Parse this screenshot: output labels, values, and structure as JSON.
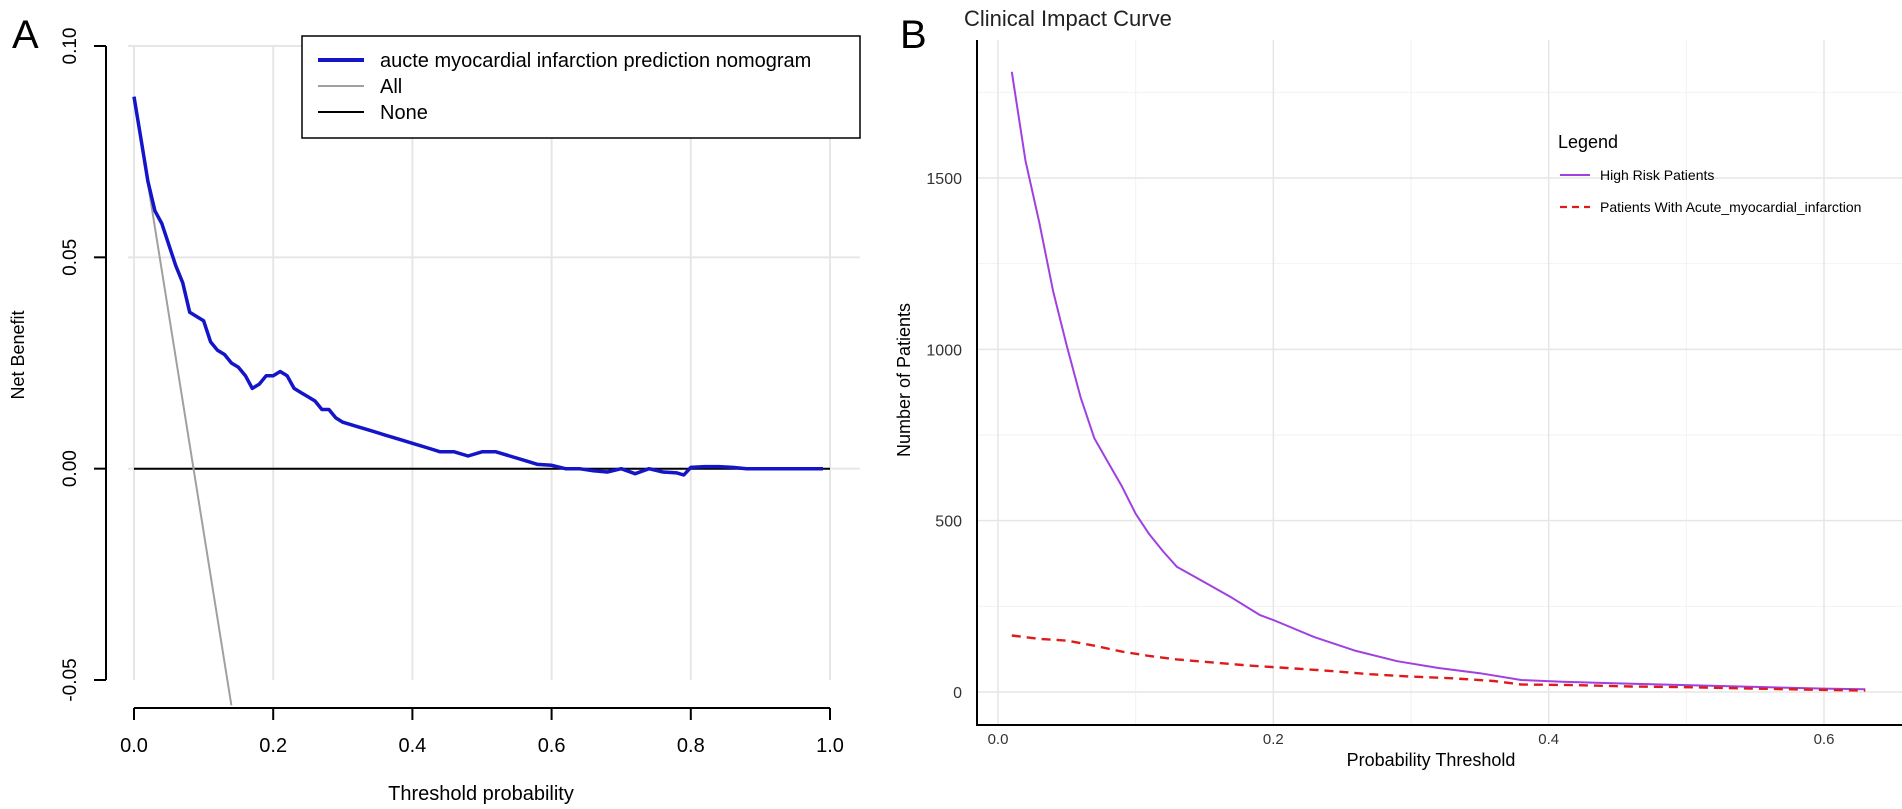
{
  "panels": {
    "a_label": "A",
    "b_label": "B"
  },
  "colors": {
    "nomogram": "#1414c8",
    "all": "#a0a0a0",
    "none": "#000000",
    "high_risk": "#a040e0",
    "with_outcome": "#e01a1a"
  },
  "chart_data": [
    {
      "type": "line",
      "panel": "A",
      "title": "",
      "xlabel": "Threshold probability",
      "ylabel": "Net Benefit",
      "xlim": [
        0.0,
        1.0
      ],
      "ylim": [
        -0.05,
        0.1
      ],
      "xticks": [
        "0.0",
        "0.2",
        "0.4",
        "0.6",
        "0.8",
        "1.0"
      ],
      "yticks": [
        "-0.05",
        "0.00",
        "0.05",
        "0.10"
      ],
      "grid": true,
      "legend_position": "top-right",
      "series": [
        {
          "name": "aucte myocardial infarction prediction nomogram",
          "x": [
            0.0,
            0.01,
            0.02,
            0.03,
            0.04,
            0.05,
            0.06,
            0.07,
            0.08,
            0.09,
            0.1,
            0.11,
            0.12,
            0.13,
            0.14,
            0.15,
            0.16,
            0.17,
            0.18,
            0.19,
            0.2,
            0.21,
            0.22,
            0.23,
            0.24,
            0.25,
            0.26,
            0.27,
            0.28,
            0.29,
            0.3,
            0.32,
            0.34,
            0.36,
            0.38,
            0.4,
            0.42,
            0.44,
            0.46,
            0.48,
            0.5,
            0.52,
            0.54,
            0.56,
            0.58,
            0.6,
            0.62,
            0.64,
            0.66,
            0.68,
            0.7,
            0.72,
            0.74,
            0.76,
            0.78,
            0.79,
            0.8,
            0.82,
            0.84,
            0.86,
            0.88,
            0.9,
            0.95,
            0.99
          ],
          "values": [
            0.088,
            0.078,
            0.068,
            0.061,
            0.058,
            0.053,
            0.048,
            0.044,
            0.037,
            0.036,
            0.035,
            0.03,
            0.028,
            0.027,
            0.025,
            0.024,
            0.022,
            0.019,
            0.02,
            0.022,
            0.022,
            0.023,
            0.022,
            0.019,
            0.018,
            0.017,
            0.016,
            0.014,
            0.014,
            0.012,
            0.011,
            0.01,
            0.009,
            0.008,
            0.007,
            0.006,
            0.005,
            0.004,
            0.004,
            0.003,
            0.004,
            0.004,
            0.003,
            0.002,
            0.001,
            0.0008,
            0.0,
            0.0,
            -0.0005,
            -0.0008,
            0.0,
            -0.0012,
            0.0,
            -0.0008,
            -0.001,
            -0.0015,
            0.0003,
            0.0005,
            0.0005,
            0.0003,
            0.0,
            0.0,
            0.0,
            0.0
          ]
        },
        {
          "name": "All",
          "x": [
            0.0,
            0.14
          ],
          "values": [
            0.088,
            -0.056
          ]
        },
        {
          "name": "None",
          "x": [
            0.0,
            1.0
          ],
          "values": [
            0.0,
            0.0
          ]
        }
      ]
    },
    {
      "type": "line",
      "panel": "B",
      "title": "Clinical Impact Curve",
      "xlabel": "Probability Threshold",
      "ylabel": "Number of Patients",
      "xlim": [
        -0.02,
        0.66
      ],
      "ylim": [
        -100,
        1900
      ],
      "xticks": [
        "0.0",
        "0.2",
        "0.4",
        "0.6"
      ],
      "yticks": [
        "0",
        "500",
        "1000",
        "1500"
      ],
      "grid": true,
      "legend_title": "Legend",
      "legend_position": "top-right",
      "series": [
        {
          "name": "High Risk Patients",
          "x": [
            0.01,
            0.02,
            0.03,
            0.04,
            0.05,
            0.06,
            0.07,
            0.08,
            0.09,
            0.1,
            0.11,
            0.12,
            0.13,
            0.15,
            0.17,
            0.19,
            0.2,
            0.23,
            0.26,
            0.29,
            0.32,
            0.35,
            0.38,
            0.41,
            0.45,
            0.5,
            0.55,
            0.6,
            0.63
          ],
          "values": [
            1810,
            1550,
            1370,
            1170,
            1010,
            860,
            740,
            670,
            600,
            520,
            460,
            410,
            365,
            320,
            275,
            225,
            210,
            160,
            120,
            90,
            70,
            55,
            35,
            30,
            25,
            20,
            15,
            10,
            8
          ]
        },
        {
          "name": "Patients With Acute_myocardial_infarction",
          "x": [
            0.01,
            0.03,
            0.05,
            0.07,
            0.09,
            0.11,
            0.13,
            0.15,
            0.18,
            0.21,
            0.24,
            0.27,
            0.3,
            0.33,
            0.36,
            0.38,
            0.42,
            0.46,
            0.5,
            0.55,
            0.6,
            0.63
          ],
          "values": [
            165,
            155,
            150,
            135,
            118,
            105,
            95,
            88,
            78,
            70,
            62,
            52,
            45,
            40,
            32,
            22,
            20,
            16,
            14,
            10,
            6,
            4
          ]
        }
      ]
    }
  ]
}
